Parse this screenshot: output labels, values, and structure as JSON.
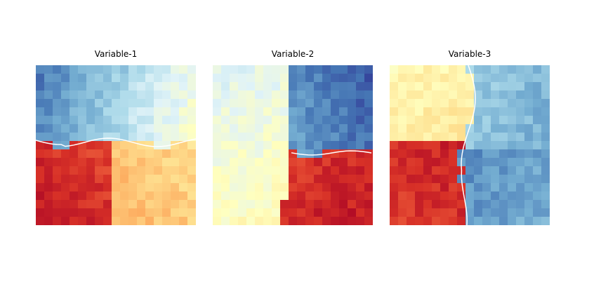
{
  "chart_data": [
    {
      "type": "heatmap",
      "title": "Variable-1",
      "colormap": "RdYlBu_r",
      "colors": {
        "low": "#313695",
        "mid": "#ffffbf",
        "high": "#a50026"
      },
      "axes_visible": false,
      "boundary": {
        "style": "white-line",
        "description": "roughly horizontal break near 48% down; low (blue) values above, high (red/orange) below"
      },
      "regions": [
        {
          "name": "upper-left",
          "level": 0.12
        },
        {
          "name": "upper-middle",
          "level": 0.3
        },
        {
          "name": "upper-right",
          "level": 0.55
        },
        {
          "name": "lower-left",
          "level": 0.9
        },
        {
          "name": "lower-right",
          "level": 0.68
        }
      ]
    },
    {
      "type": "heatmap",
      "title": "Variable-2",
      "colormap": "RdYlBu_r",
      "colors": {
        "low": "#313695",
        "mid": "#ffffbf",
        "high": "#a50026"
      },
      "axes_visible": false,
      "boundary": {
        "style": "white-line",
        "description": "horizontal break at ~55% on the right half; high (red) values lower-right, low (blue) upper-right, pale yellow left"
      },
      "regions": [
        {
          "name": "upper-left",
          "level": 0.45
        },
        {
          "name": "upper-right",
          "level": 0.1
        },
        {
          "name": "lower-left",
          "level": 0.48
        },
        {
          "name": "lower-right",
          "level": 0.9
        }
      ]
    },
    {
      "type": "heatmap",
      "title": "Variable-3",
      "colormap": "RdYlBu_r",
      "colors": {
        "low": "#313695",
        "mid": "#ffffbf",
        "high": "#a50026"
      },
      "axes_visible": false,
      "boundary": {
        "style": "white-line",
        "description": "vertical break near 50% across; high values left, low values right, with upper-left yellow and lower-left deep red"
      },
      "regions": [
        {
          "name": "upper-left",
          "level": 0.58
        },
        {
          "name": "lower-left",
          "level": 0.92
        },
        {
          "name": "upper-right",
          "level": 0.28
        },
        {
          "name": "lower-right",
          "level": 0.16
        }
      ]
    }
  ]
}
